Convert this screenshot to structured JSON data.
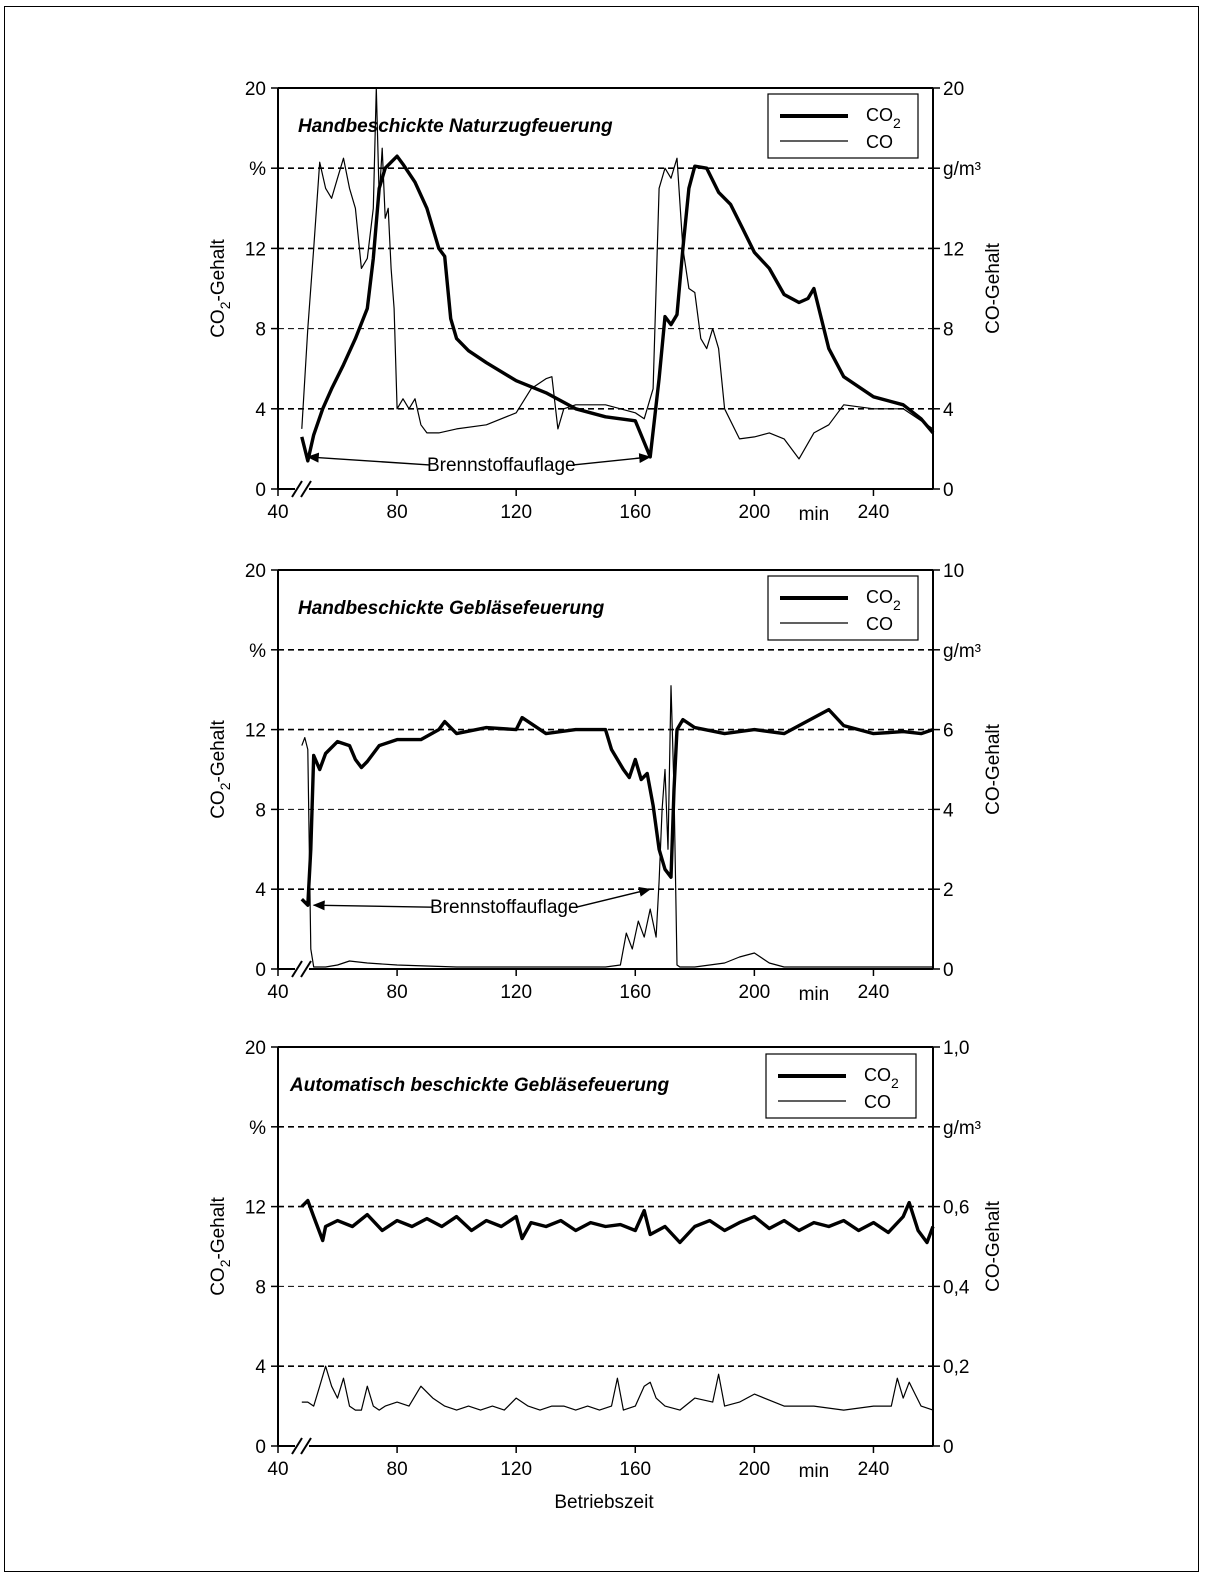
{
  "figure": {
    "xlabel": "Betriebszeit",
    "x_unit": "min",
    "x_ticks": [
      "40",
      "80",
      "120",
      "160",
      "200",
      "240"
    ],
    "y_left_ticks": [
      "0",
      "4",
      "8",
      "12",
      "%",
      "20"
    ],
    "y_left_label_main": "CO",
    "y_left_label_sub": "2",
    "y_left_label_rest": "-Gehalt",
    "y_right_label": "CO-Gehalt",
    "y_right_unit": "g/m³",
    "annotation": "Brennstoffauflage",
    "legend": {
      "co2_main": "CO",
      "co2_sub": "2",
      "co": "CO"
    },
    "colors": {
      "line": "#000000",
      "background": "#ffffff"
    }
  },
  "chart_data": [
    {
      "type": "line",
      "title": "Handbeschickte Naturzugfeuerung",
      "xlabel": "min",
      "ylabel_left": "CO2-Gehalt %",
      "ylabel_right": "CO-Gehalt g/m³",
      "xlim": [
        40,
        260
      ],
      "ylim_left": [
        0,
        20
      ],
      "ylim_right": [
        0,
        20
      ],
      "right_ticks": [
        "0",
        "4",
        "8",
        "12",
        "g/m³",
        "20"
      ],
      "legend": "top-right",
      "grid": "dashed horizontal",
      "series": [
        {
          "name": "CO2",
          "axis": "left",
          "width": "thick",
          "x": [
            48,
            50,
            52,
            55,
            58,
            62,
            66,
            70,
            72,
            74,
            76,
            78,
            80,
            82,
            86,
            90,
            94,
            96,
            98,
            100,
            104,
            110,
            120,
            130,
            140,
            150,
            160,
            165,
            168,
            170,
            172,
            174,
            176,
            178,
            180,
            184,
            188,
            192,
            196,
            200,
            205,
            210,
            215,
            218,
            220,
            225,
            230,
            240,
            250,
            256,
            260
          ],
          "y": [
            2.6,
            1.4,
            2.7,
            4.0,
            5.0,
            6.2,
            7.5,
            9.0,
            11.5,
            15.0,
            16.0,
            16.3,
            16.6,
            16.2,
            15.3,
            14.0,
            12.0,
            11.6,
            8.5,
            7.5,
            6.9,
            6.3,
            5.4,
            4.8,
            4.0,
            3.6,
            3.4,
            1.6,
            5.5,
            8.6,
            8.2,
            8.7,
            12.0,
            15.0,
            16.1,
            16.0,
            14.8,
            14.2,
            13.0,
            11.8,
            11.0,
            9.7,
            9.3,
            9.5,
            10.0,
            7.0,
            5.6,
            4.6,
            4.2,
            3.5,
            2.8
          ]
        },
        {
          "name": "CO",
          "axis": "right",
          "width": "thin",
          "x": [
            48,
            50,
            52,
            54,
            56,
            58,
            60,
            62,
            64,
            66,
            68,
            70,
            72,
            73,
            74,
            75,
            76,
            77,
            78,
            79,
            80,
            82,
            84,
            86,
            88,
            90,
            94,
            100,
            110,
            120,
            125,
            130,
            132,
            134,
            136,
            140,
            150,
            155,
            160,
            163,
            166,
            168,
            170,
            172,
            174,
            176,
            178,
            180,
            182,
            184,
            186,
            188,
            190,
            195,
            200,
            205,
            210,
            215,
            220,
            225,
            230,
            240,
            250,
            255,
            260
          ],
          "y": [
            3.0,
            8.0,
            12.0,
            16.3,
            15.0,
            14.5,
            15.5,
            16.5,
            15.0,
            14.0,
            11.0,
            11.5,
            14.0,
            20.0,
            14.5,
            17.0,
            13.5,
            14.0,
            11.0,
            9.0,
            4.0,
            4.5,
            4.0,
            4.5,
            3.2,
            2.8,
            2.8,
            3.0,
            3.2,
            3.8,
            5.0,
            5.5,
            5.6,
            3.0,
            4.0,
            4.2,
            4.2,
            4.0,
            3.8,
            3.5,
            5.0,
            15.0,
            16.0,
            15.5,
            16.5,
            12.0,
            10.0,
            9.8,
            7.5,
            7.0,
            8.0,
            7.0,
            4.0,
            2.5,
            2.6,
            2.8,
            2.5,
            1.5,
            2.8,
            3.2,
            4.2,
            4.0,
            4.0,
            3.5,
            3.0
          ]
        }
      ],
      "annotations": [
        {
          "text": "Brennstoffauflage",
          "at": [
            115,
            0.9
          ],
          "arrows_to": [
            [
              50,
              1.6
            ],
            [
              165,
              1.6
            ]
          ]
        }
      ]
    },
    {
      "type": "line",
      "title": "Handbeschickte Gebläsefeuerung",
      "xlabel": "min",
      "ylabel_left": "CO2-Gehalt %",
      "ylabel_right": "CO-Gehalt g/m³",
      "xlim": [
        40,
        260
      ],
      "ylim_left": [
        0,
        20
      ],
      "ylim_right": [
        0,
        10
      ],
      "right_ticks": [
        "0",
        "2",
        "4",
        "6",
        "g/m³",
        "10"
      ],
      "legend": "top-right",
      "grid": "dashed horizontal",
      "series": [
        {
          "name": "CO2",
          "axis": "left",
          "width": "thick",
          "x": [
            48,
            50,
            51,
            52,
            54,
            56,
            60,
            64,
            66,
            68,
            70,
            74,
            80,
            88,
            94,
            96,
            100,
            110,
            120,
            122,
            130,
            140,
            150,
            152,
            156,
            158,
            160,
            162,
            164,
            166,
            168,
            170,
            172,
            173,
            174,
            176,
            180,
            190,
            200,
            210,
            220,
            225,
            230,
            240,
            250,
            256,
            260
          ],
          "y": [
            3.5,
            3.2,
            6.0,
            10.7,
            10.0,
            10.8,
            11.4,
            11.2,
            10.5,
            10.1,
            10.4,
            11.2,
            11.5,
            11.5,
            12.0,
            12.4,
            11.8,
            12.1,
            12.0,
            12.6,
            11.8,
            12.0,
            12.0,
            11.0,
            10.0,
            9.6,
            10.5,
            9.5,
            9.8,
            8.2,
            6.0,
            5.0,
            4.6,
            9.0,
            12.0,
            12.5,
            12.1,
            11.8,
            12.0,
            11.8,
            12.6,
            13.0,
            12.2,
            11.8,
            11.9,
            11.8,
            12.0
          ]
        },
        {
          "name": "CO",
          "axis": "right",
          "width": "thin",
          "x": [
            48,
            49,
            50,
            51,
            52,
            53,
            56,
            60,
            64,
            70,
            80,
            100,
            120,
            140,
            150,
            155,
            157,
            159,
            161,
            163,
            165,
            167,
            168,
            169,
            170,
            171,
            172,
            173,
            174,
            175,
            180,
            190,
            195,
            200,
            205,
            210,
            220,
            240,
            260
          ],
          "y": [
            5.6,
            5.8,
            5.5,
            0.5,
            0.05,
            0.05,
            0.05,
            0.1,
            0.2,
            0.15,
            0.1,
            0.05,
            0.05,
            0.05,
            0.05,
            0.1,
            0.9,
            0.5,
            1.2,
            0.8,
            1.5,
            0.8,
            2.2,
            4.0,
            5.0,
            3.0,
            7.1,
            4.5,
            0.1,
            0.05,
            0.05,
            0.15,
            0.3,
            0.4,
            0.15,
            0.05,
            0.05,
            0.05,
            0.05
          ]
        }
      ],
      "annotations": [
        {
          "text": "Brennstoffauflage",
          "at": [
            116,
            2.8
          ],
          "arrows_to": [
            [
              52,
              3.2
            ],
            [
              165,
              4.0
            ]
          ]
        }
      ]
    },
    {
      "type": "line",
      "title": "Automatisch beschickte Gebläsefeuerung",
      "xlabel": "Betriebszeit",
      "ylabel_left": "CO2-Gehalt %",
      "ylabel_right": "CO-Gehalt g/m³",
      "xlim": [
        40,
        260
      ],
      "ylim_left": [
        0,
        20
      ],
      "ylim_right": [
        0,
        1.0
      ],
      "right_ticks": [
        "0",
        "0,2",
        "0,4",
        "0,6",
        "g/m³",
        "1,0"
      ],
      "legend": "top-right",
      "grid": "dashed horizontal",
      "series": [
        {
          "name": "CO2",
          "axis": "left",
          "width": "thick",
          "x": [
            48,
            50,
            52,
            54,
            55,
            56,
            60,
            65,
            70,
            75,
            80,
            85,
            90,
            95,
            100,
            105,
            110,
            115,
            120,
            122,
            125,
            130,
            135,
            140,
            145,
            150,
            155,
            160,
            163,
            165,
            170,
            175,
            180,
            185,
            190,
            195,
            200,
            205,
            210,
            215,
            220,
            225,
            230,
            235,
            240,
            245,
            250,
            252,
            255,
            258,
            260
          ],
          "y": [
            12.0,
            12.3,
            11.5,
            10.7,
            10.3,
            11.0,
            11.3,
            11.0,
            11.6,
            10.8,
            11.3,
            11.0,
            11.4,
            11.0,
            11.5,
            10.8,
            11.3,
            11.0,
            11.5,
            10.4,
            11.2,
            11.0,
            11.3,
            10.8,
            11.2,
            11.0,
            11.1,
            10.8,
            11.8,
            10.6,
            11.0,
            10.2,
            11.0,
            11.3,
            10.8,
            11.2,
            11.5,
            10.9,
            11.3,
            10.8,
            11.2,
            11.0,
            11.3,
            10.8,
            11.2,
            10.7,
            11.5,
            12.2,
            10.8,
            10.2,
            11.0
          ]
        },
        {
          "name": "CO",
          "axis": "right",
          "width": "thin",
          "x": [
            48,
            50,
            52,
            54,
            56,
            58,
            60,
            62,
            64,
            66,
            68,
            70,
            72,
            74,
            76,
            80,
            84,
            88,
            92,
            96,
            100,
            104,
            108,
            112,
            116,
            120,
            124,
            128,
            132,
            136,
            140,
            144,
            148,
            152,
            154,
            156,
            160,
            163,
            165,
            167,
            170,
            175,
            180,
            186,
            188,
            190,
            195,
            200,
            210,
            220,
            230,
            240,
            246,
            248,
            250,
            252,
            254,
            256,
            260
          ],
          "y": [
            0.11,
            0.11,
            0.1,
            0.15,
            0.2,
            0.15,
            0.12,
            0.17,
            0.1,
            0.09,
            0.09,
            0.15,
            0.1,
            0.09,
            0.1,
            0.11,
            0.1,
            0.15,
            0.12,
            0.1,
            0.09,
            0.1,
            0.09,
            0.1,
            0.09,
            0.12,
            0.1,
            0.09,
            0.1,
            0.1,
            0.09,
            0.1,
            0.09,
            0.1,
            0.17,
            0.09,
            0.1,
            0.15,
            0.16,
            0.12,
            0.1,
            0.09,
            0.12,
            0.11,
            0.18,
            0.1,
            0.11,
            0.13,
            0.1,
            0.1,
            0.09,
            0.1,
            0.1,
            0.17,
            0.12,
            0.16,
            0.13,
            0.1,
            0.09
          ]
        }
      ],
      "annotations": []
    }
  ]
}
